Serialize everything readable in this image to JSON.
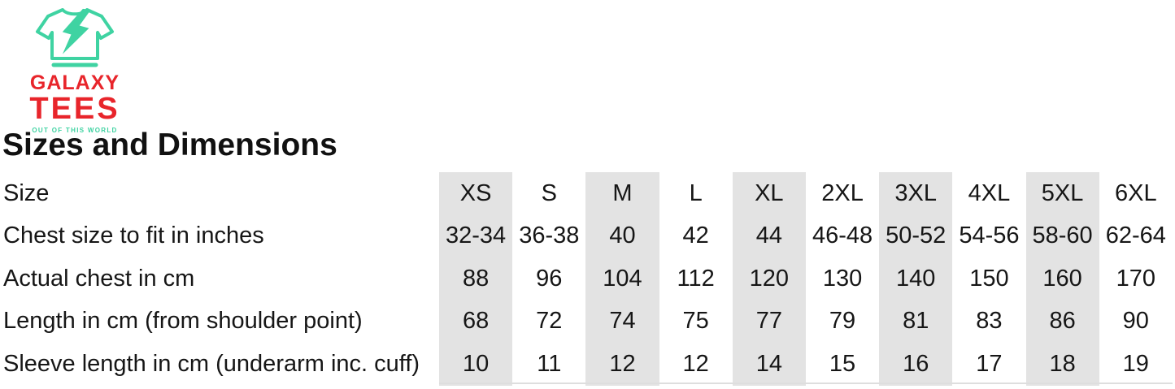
{
  "logo": {
    "brand_line1": "GALAXY",
    "brand_line2": "TEES",
    "tagline": "OUT OF THIS WORLD",
    "colors": {
      "mint": "#3fd3a2",
      "red": "#e8252b"
    }
  },
  "page": {
    "title": "Sizes and Dimensions",
    "background": "#ffffff"
  },
  "size_table": {
    "shade_color": "#e3e3e3",
    "shaded_column_indices": [
      0,
      2,
      4,
      6,
      8
    ],
    "rows": [
      {
        "label": "Size",
        "values": [
          "XS",
          "S",
          "M",
          "L",
          "XL",
          "2XL",
          "3XL",
          "4XL",
          "5XL",
          "6XL"
        ]
      },
      {
        "label": "Chest size to fit in inches",
        "values": [
          "32-34",
          "36-38",
          "40",
          "42",
          "44",
          "46-48",
          "50-52",
          "54-56",
          "58-60",
          "62-64"
        ]
      },
      {
        "label": "Actual chest in cm",
        "values": [
          "88",
          "96",
          "104",
          "112",
          "120",
          "130",
          "140",
          "150",
          "160",
          "170"
        ]
      },
      {
        "label": "Length in cm (from shoulder point)",
        "values": [
          "68",
          "72",
          "74",
          "75",
          "77",
          "79",
          "81",
          "83",
          "86",
          "90"
        ]
      },
      {
        "label": "Sleeve length in cm (underarm inc. cuff)",
        "values": [
          "10",
          "11",
          "12",
          "12",
          "14",
          "15",
          "16",
          "17",
          "18",
          "19"
        ]
      }
    ]
  }
}
